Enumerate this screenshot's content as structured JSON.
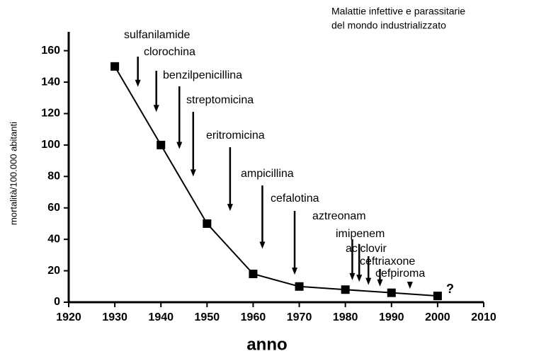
{
  "chart_data": {
    "type": "line",
    "title_lines": [
      "Malattie infettive e parassitarie",
      "del mondo industrializzato"
    ],
    "x_label": "anno",
    "y_label": "mortalità/100.000 abitanti",
    "x": [
      1930,
      1940,
      1950,
      1960,
      1970,
      1980,
      1990,
      2000
    ],
    "series": [
      {
        "color": "#000000",
        "values": [
          150,
          100,
          50,
          18,
          10,
          8,
          6,
          4
        ]
      }
    ],
    "xlim": [
      1920,
      2010
    ],
    "xticks": [
      1920,
      1930,
      1940,
      1950,
      1960,
      1970,
      1980,
      1990,
      2000,
      2010
    ],
    "ylim": [
      0,
      172
    ],
    "yticks": [
      0,
      20,
      40,
      60,
      80,
      100,
      120,
      140,
      160
    ],
    "annotations": [
      {
        "text": "sulfanilamide",
        "x": 1935,
        "y": 137
      },
      {
        "text": "clorochina",
        "x": 1939,
        "y": 121
      },
      {
        "text": "benzilpenicillina",
        "x": 1944,
        "y": 97.5
      },
      {
        "text": "streptomicina",
        "x": 1947,
        "y": 80
      },
      {
        "text": "eritromicina",
        "x": 1955,
        "y": 58
      },
      {
        "text": "ampicillina",
        "x": 1962,
        "y": 34
      },
      {
        "text": "cefalotina",
        "x": 1969,
        "y": 17.5
      },
      {
        "text": "aztreonam",
        "x": 1981.5,
        "y": 14
      },
      {
        "text": "imipenem",
        "x": 1983,
        "y": 13
      },
      {
        "text": "aciclovir",
        "x": 1985,
        "y": 11
      },
      {
        "text": "ceftriaxone",
        "x": 1987.5,
        "y": 10
      },
      {
        "text": "cefpiroma",
        "x": 1994,
        "y": 8.5
      }
    ],
    "end_note": "?"
  }
}
